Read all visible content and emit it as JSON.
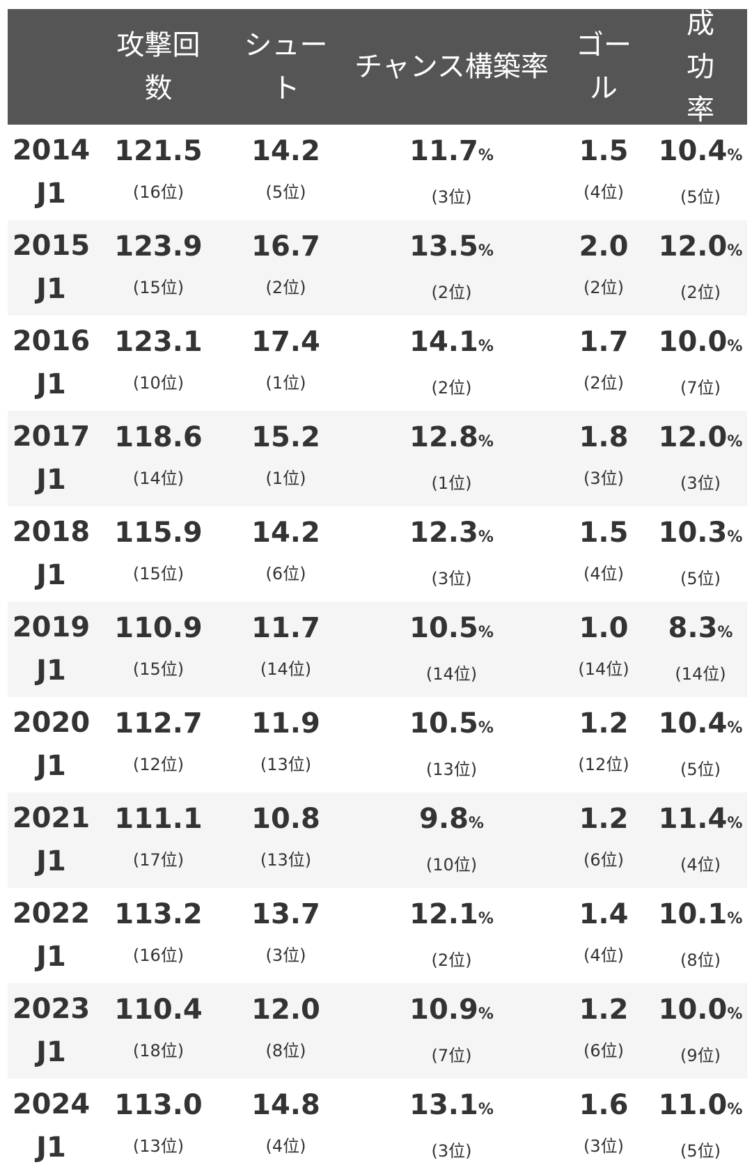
{
  "headers": [
    "",
    "攻撃回数",
    "シュート",
    "チャンス構築率",
    "ゴール",
    "成功率"
  ],
  "percent_sign": "%",
  "rows": [
    {
      "year": "2014",
      "league": "J1",
      "attacks": "121.5",
      "attacks_rank": "(16位)",
      "shots": "14.2",
      "shots_rank": "(5位)",
      "chance": "11.7",
      "chance_rank": "(3位)",
      "goals": "1.5",
      "goals_rank": "(4位)",
      "success": "10.4",
      "success_rank": "(5位)"
    },
    {
      "year": "2015",
      "league": "J1",
      "attacks": "123.9",
      "attacks_rank": "(15位)",
      "shots": "16.7",
      "shots_rank": "(2位)",
      "chance": "13.5",
      "chance_rank": "(2位)",
      "goals": "2.0",
      "goals_rank": "(2位)",
      "success": "12.0",
      "success_rank": "(2位)"
    },
    {
      "year": "2016",
      "league": "J1",
      "attacks": "123.1",
      "attacks_rank": "(10位)",
      "shots": "17.4",
      "shots_rank": "(1位)",
      "chance": "14.1",
      "chance_rank": "(2位)",
      "goals": "1.7",
      "goals_rank": "(2位)",
      "success": "10.0",
      "success_rank": "(7位)"
    },
    {
      "year": "2017",
      "league": "J1",
      "attacks": "118.6",
      "attacks_rank": "(14位)",
      "shots": "15.2",
      "shots_rank": "(1位)",
      "chance": "12.8",
      "chance_rank": "(1位)",
      "goals": "1.8",
      "goals_rank": "(3位)",
      "success": "12.0",
      "success_rank": "(3位)"
    },
    {
      "year": "2018",
      "league": "J1",
      "attacks": "115.9",
      "attacks_rank": "(15位)",
      "shots": "14.2",
      "shots_rank": "(6位)",
      "chance": "12.3",
      "chance_rank": "(3位)",
      "goals": "1.5",
      "goals_rank": "(4位)",
      "success": "10.3",
      "success_rank": "(5位)"
    },
    {
      "year": "2019",
      "league": "J1",
      "attacks": "110.9",
      "attacks_rank": "(15位)",
      "shots": "11.7",
      "shots_rank": "(14位)",
      "chance": "10.5",
      "chance_rank": "(14位)",
      "goals": "1.0",
      "goals_rank": "(14位)",
      "success": "8.3",
      "success_rank": "(14位)"
    },
    {
      "year": "2020",
      "league": "J1",
      "attacks": "112.7",
      "attacks_rank": "(12位)",
      "shots": "11.9",
      "shots_rank": "(13位)",
      "chance": "10.5",
      "chance_rank": "(13位)",
      "goals": "1.2",
      "goals_rank": "(12位)",
      "success": "10.4",
      "success_rank": "(5位)"
    },
    {
      "year": "2021",
      "league": "J1",
      "attacks": "111.1",
      "attacks_rank": "(17位)",
      "shots": "10.8",
      "shots_rank": "(13位)",
      "chance": "9.8",
      "chance_rank": "(10位)",
      "goals": "1.2",
      "goals_rank": "(6位)",
      "success": "11.4",
      "success_rank": "(4位)"
    },
    {
      "year": "2022",
      "league": "J1",
      "attacks": "113.2",
      "attacks_rank": "(16位)",
      "shots": "13.7",
      "shots_rank": "(3位)",
      "chance": "12.1",
      "chance_rank": "(2位)",
      "goals": "1.4",
      "goals_rank": "(4位)",
      "success": "10.1",
      "success_rank": "(8位)"
    },
    {
      "year": "2023",
      "league": "J1",
      "attacks": "110.4",
      "attacks_rank": "(18位)",
      "shots": "12.0",
      "shots_rank": "(8位)",
      "chance": "10.9",
      "chance_rank": "(7位)",
      "goals": "1.2",
      "goals_rank": "(6位)",
      "success": "10.0",
      "success_rank": "(9位)"
    },
    {
      "year": "2024",
      "league": "J1",
      "attacks": "113.0",
      "attacks_rank": "(13位)",
      "shots": "14.8",
      "shots_rank": "(4位)",
      "chance": "13.1",
      "chance_rank": "(3位)",
      "goals": "1.6",
      "goals_rank": "(3位)",
      "success": "11.0",
      "success_rank": "(5位)"
    }
  ]
}
